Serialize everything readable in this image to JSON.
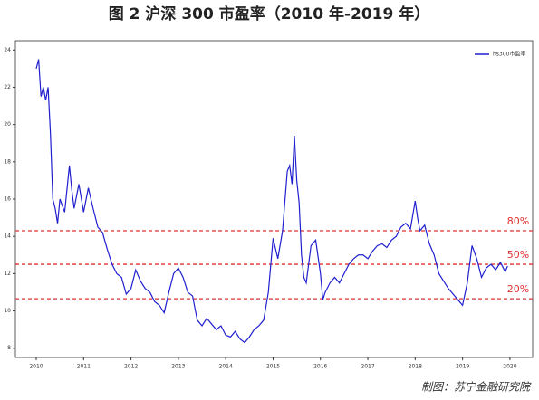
{
  "chart_data": {
    "type": "line",
    "title": "图 2 沪深 300 市盈率（2010 年-2019 年）",
    "source": "制图：苏宁金融研究院",
    "x": [
      2010.0,
      2010.05,
      2010.1,
      2010.15,
      2010.2,
      2010.25,
      2010.3,
      2010.35,
      2010.4,
      2010.45,
      2010.5,
      2010.6,
      2010.7,
      2010.75,
      2010.8,
      2010.9,
      2011.0,
      2011.1,
      2011.2,
      2011.3,
      2011.4,
      2011.5,
      2011.6,
      2011.7,
      2011.8,
      2011.9,
      2012.0,
      2012.1,
      2012.2,
      2012.3,
      2012.4,
      2012.5,
      2012.6,
      2012.7,
      2012.8,
      2012.9,
      2013.0,
      2013.1,
      2013.2,
      2013.3,
      2013.4,
      2013.5,
      2013.6,
      2013.7,
      2013.8,
      2013.9,
      2014.0,
      2014.1,
      2014.2,
      2014.3,
      2014.4,
      2014.5,
      2014.6,
      2014.7,
      2014.8,
      2014.9,
      2015.0,
      2015.1,
      2015.2,
      2015.3,
      2015.35,
      2015.4,
      2015.45,
      2015.5,
      2015.55,
      2015.6,
      2015.65,
      2015.7,
      2015.8,
      2015.9,
      2016.0,
      2016.05,
      2016.1,
      2016.2,
      2016.3,
      2016.4,
      2016.5,
      2016.6,
      2016.7,
      2016.8,
      2016.9,
      2017.0,
      2017.1,
      2017.2,
      2017.3,
      2017.4,
      2017.5,
      2017.6,
      2017.7,
      2017.8,
      2017.9,
      2018.0,
      2018.05,
      2018.1,
      2018.2,
      2018.3,
      2018.4,
      2018.5,
      2018.6,
      2018.7,
      2018.8,
      2018.9,
      2019.0,
      2019.1,
      2019.2,
      2019.3,
      2019.4,
      2019.5,
      2019.6,
      2019.7,
      2019.8,
      2019.9,
      2019.95
    ],
    "series": [
      {
        "name": "hs300市盈率",
        "color": "#1f1fd0",
        "values": [
          23.0,
          23.5,
          21.5,
          22.0,
          21.3,
          22.0,
          19.5,
          16.0,
          15.5,
          14.7,
          16.0,
          15.3,
          17.8,
          16.5,
          15.5,
          16.8,
          15.3,
          16.6,
          15.5,
          14.5,
          14.2,
          13.3,
          12.5,
          12.0,
          11.8,
          10.9,
          11.2,
          12.2,
          11.6,
          11.2,
          11.0,
          10.5,
          10.3,
          9.9,
          11.0,
          12.0,
          12.3,
          11.8,
          11.0,
          10.8,
          9.5,
          9.2,
          9.6,
          9.3,
          9.0,
          9.2,
          8.7,
          8.6,
          8.9,
          8.5,
          8.3,
          8.6,
          9.0,
          9.2,
          9.5,
          11.0,
          13.9,
          12.8,
          14.3,
          17.5,
          17.8,
          16.8,
          19.4,
          17.0,
          15.8,
          13.0,
          11.8,
          11.5,
          13.5,
          13.8,
          12.0,
          10.6,
          11.0,
          11.5,
          11.8,
          11.5,
          12.0,
          12.5,
          12.8,
          13.0,
          13.0,
          12.8,
          13.2,
          13.5,
          13.6,
          13.4,
          13.8,
          14.0,
          14.5,
          14.7,
          14.4,
          15.9,
          15.0,
          14.3,
          14.6,
          13.6,
          13.0,
          12.0,
          11.6,
          11.2,
          10.9,
          10.6,
          10.3,
          11.5,
          13.5,
          12.8,
          11.8,
          12.3,
          12.5,
          12.2,
          12.6,
          12.1,
          12.4
        ]
      }
    ],
    "reference_lines": [
      {
        "name": "80%",
        "value": 14.3,
        "color": "#e03030"
      },
      {
        "name": "50%",
        "value": 12.5,
        "color": "#e03030"
      },
      {
        "name": "20%",
        "value": 10.65,
        "color": "#e03030"
      }
    ],
    "xlim": [
      2009.56,
      2020.48
    ],
    "xticks": [
      2010,
      2011,
      2012,
      2013,
      2014,
      2015,
      2016,
      2017,
      2018,
      2019,
      2020
    ],
    "ylim": [
      7.5,
      24.5
    ],
    "yticks": [
      8,
      10,
      12,
      14,
      16,
      18,
      20,
      22,
      24
    ],
    "legend": "upper right"
  }
}
